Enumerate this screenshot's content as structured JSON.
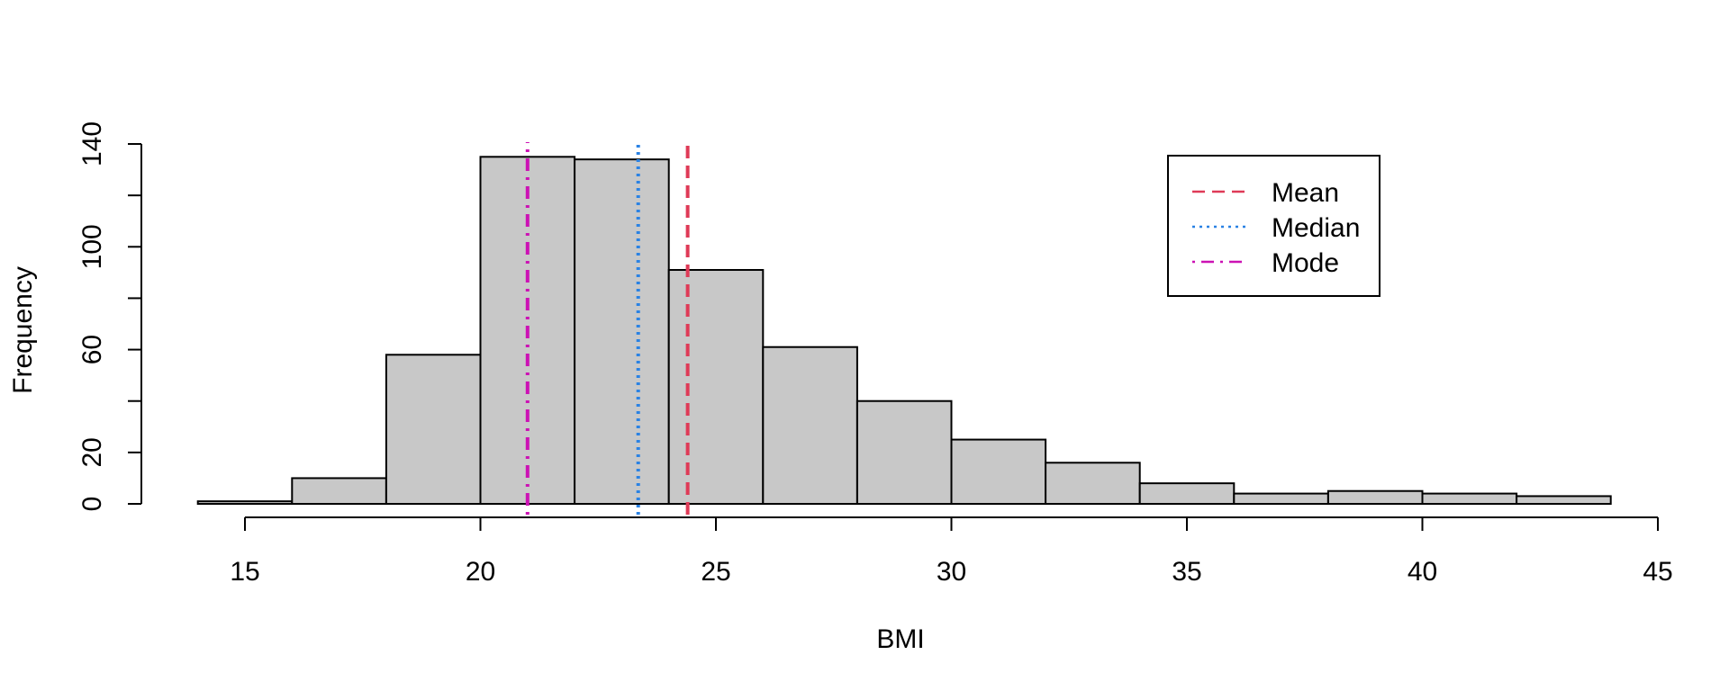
{
  "chart_data": {
    "type": "bar",
    "title": "",
    "xlabel": "BMI",
    "ylabel": "Frequency",
    "xlim": [
      14,
      45
    ],
    "ylim": [
      0,
      140
    ],
    "x_ticks": [
      "15",
      "20",
      "25",
      "30",
      "35",
      "40",
      "45"
    ],
    "y_ticks": [
      "0",
      "20",
      "60",
      "100",
      "140"
    ],
    "bins": [
      {
        "from": 14,
        "to": 16,
        "count": 1
      },
      {
        "from": 16,
        "to": 18,
        "count": 10
      },
      {
        "from": 18,
        "to": 20,
        "count": 58
      },
      {
        "from": 20,
        "to": 22,
        "count": 135
      },
      {
        "from": 22,
        "to": 24,
        "count": 134
      },
      {
        "from": 24,
        "to": 26,
        "count": 91
      },
      {
        "from": 26,
        "to": 28,
        "count": 61
      },
      {
        "from": 28,
        "to": 30,
        "count": 40
      },
      {
        "from": 30,
        "to": 32,
        "count": 25
      },
      {
        "from": 32,
        "to": 34,
        "count": 16
      },
      {
        "from": 34,
        "to": 36,
        "count": 8
      },
      {
        "from": 36,
        "to": 38,
        "count": 4
      },
      {
        "from": 38,
        "to": 40,
        "count": 5
      },
      {
        "from": 40,
        "to": 42,
        "count": 4
      },
      {
        "from": 42,
        "to": 44,
        "count": 3
      }
    ],
    "bar_color": "#c8c8c8",
    "reference_lines": [
      {
        "name": "Mean",
        "x": 24.4,
        "color": "#df3a57",
        "style": "dashed"
      },
      {
        "name": "Median",
        "x": 23.35,
        "color": "#2a82e4",
        "style": "dotted"
      },
      {
        "name": "Mode",
        "x": 21.0,
        "color": "#cc12b4",
        "style": "dotdash"
      }
    ],
    "legend_position": "top-right"
  }
}
